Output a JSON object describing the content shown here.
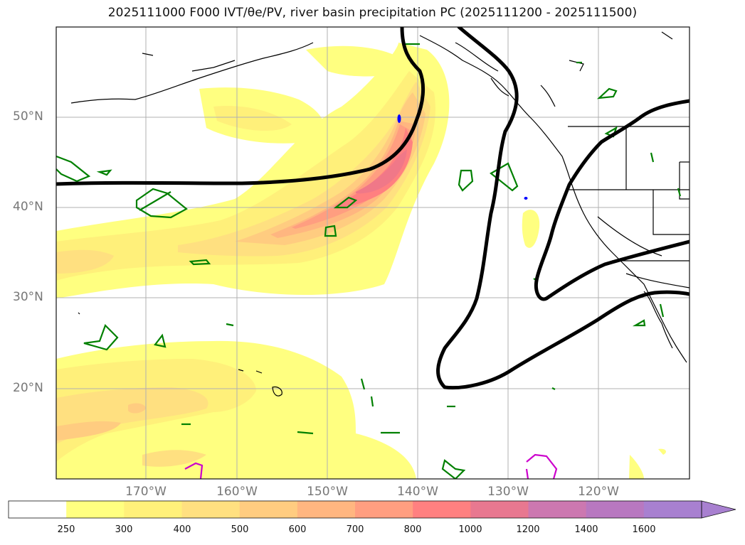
{
  "title": "2025111000 F000 IVT/θe/PV, river basin precipitation PC (2025111200 - 2025111500)",
  "axes": {
    "lat_labels": [
      "50°N",
      "40°N",
      "30°N",
      "20°N"
    ],
    "lon_labels": [
      "170°W",
      "160°W",
      "150°W",
      "140°W",
      "130°W",
      "120°W"
    ]
  },
  "colorbar": {
    "ticks": [
      "250",
      "300",
      "400",
      "500",
      "600",
      "700",
      "800",
      "1000",
      "1200",
      "1400",
      "1600"
    ],
    "colors": [
      "#ffffff",
      "#ffff80",
      "#fff07a",
      "#ffe080",
      "#ffcc80",
      "#ffb680",
      "#ff9e80",
      "#ff8080",
      "#e87890",
      "#cc78b0",
      "#b878c0",
      "#a880d0"
    ]
  },
  "legend_colors": {
    "ivt_contour": "#000000",
    "green_contour": "#008000",
    "magenta_contour": "#cc00cc",
    "blue_contour": "#0000ff",
    "coastline": "#000000"
  }
}
